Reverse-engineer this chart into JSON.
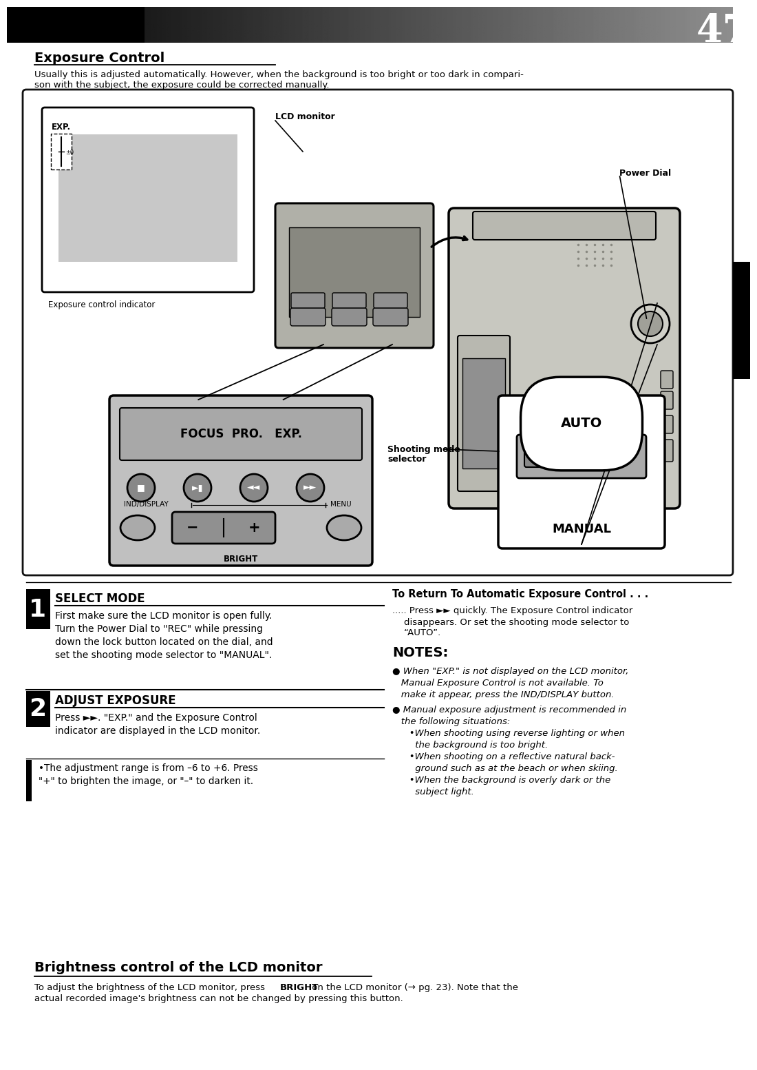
{
  "page_number": "47",
  "bg_color": "#ffffff",
  "section1_title": "Exposure Control",
  "section1_body1": "Usually this is adjusted automatically. However, when the background is too bright or too dark in compari-",
  "section1_body2": "son with the subject, the exposure could be corrected manually.",
  "section2_title": "Brightness control of the LCD monitor",
  "section2_body1": "To adjust the brightness of the LCD monitor, press ",
  "section2_bold": "BRIGHT",
  "section2_body2": " on the LCD monitor (",
  "section2_ref": "→ pg. 23",
  "section2_body3": "). Note that the",
  "section2_body4": "actual recorded image's brightness can not be changed by pressing this button.",
  "step1_num": "1",
  "step1_title": "SELECT MODE",
  "step1_body": "First make sure the LCD monitor is open fully.\nTurn the Power Dial to \"REC\" while pressing\ndown the lock button located on the dial, and\nset the shooting mode selector to \"MANUAL\".",
  "step2_num": "2",
  "step2_title": "ADJUST EXPOSURE",
  "step2_body": "Press ►►. \"EXP.\" and the Exposure Control\nindicator are displayed in the LCD monitor.",
  "step2_sub": "•The adjustment range is from –6 to +6. Press\n\"+\" to brighten the image, or \"–\" to darken it.",
  "return_title": "To Return To Automatic Exposure Control . . .",
  "return_body1": "..... Press ►► quickly. The Exposure Control indicator",
  "return_body2": "    disappears. Or set the shooting mode selector to",
  "return_body3": "    “AUTO”.",
  "notes_title": "NOTES:",
  "note1_bullet": "●",
  "note1": " When \"EXP.\" is not displayed on the LCD monitor,",
  "note1b": "   Manual Exposure Control is not available. To",
  "note1c": "   make it appear, press the IND/DISPLAY button.",
  "note2_bullet": "●",
  "note2": " Manual exposure adjustment is recommended in",
  "note2b": "   the following situations:",
  "note2c": "   •When shooting using reverse lighting or when",
  "note2d": "     the background is too bright.",
  "note2e": "   •When shooting on a reflective natural back-",
  "note2f": "     ground such as at the beach or when skiing.",
  "note2g": "   •When the background is overly dark or the",
  "note2h": "     subject light.",
  "lcd_label": "LCD monitor",
  "power_dial_label": "Power Dial",
  "exp_indicator_label": "Exposure control indicator",
  "shooting_mode_label": "Shooting mode",
  "shooting_mode_label2": "selector",
  "focus_pro_exp_text": "FOCUS  PRO.   EXP.",
  "ind_display_text": "IND/DISPLAY",
  "menu_text": "MENU",
  "bright_text": "BRIGHT",
  "auto_text": "AUTO",
  "manual_text": "MANUAL",
  "exp_text": "EXP."
}
